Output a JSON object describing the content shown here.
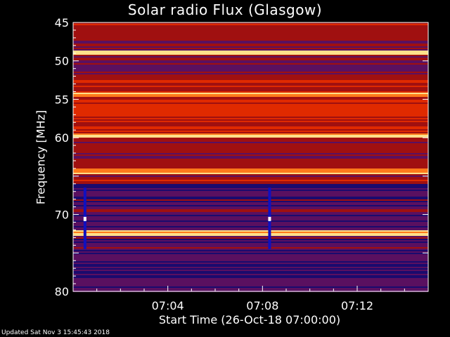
{
  "chart_data": {
    "type": "heatmap",
    "title": "Solar radio Flux (Glasgow)",
    "ylabel": "Frequency [MHz]",
    "xlabel": "Start Time (26-Oct-18 07:00:00)",
    "y_ticks": [
      45,
      50,
      55,
      60,
      65,
      70,
      75,
      80
    ],
    "y_tick_labels": [
      "45",
      "50",
      "55",
      "60",
      "",
      "70",
      "",
      "80"
    ],
    "ylim": [
      45,
      80
    ],
    "x_ticks": [
      "07:04",
      "07:08",
      "07:12"
    ],
    "x_tick_minutes": [
      4,
      8,
      12
    ],
    "xlim_minutes": [
      0,
      15
    ],
    "bright_lines_mhz": [
      48.9,
      54.3,
      59.6,
      64.3,
      72.3
    ],
    "vertical_events_minutes": [
      0.5,
      8.3
    ],
    "colormap": [
      "#1a0a6e",
      "#5a1060",
      "#a01010",
      "#e02a00",
      "#ff7a1a",
      "#ffe08a",
      "#ffffff"
    ],
    "footer": "Updated Sat Nov  3 15:45:43 2018"
  }
}
